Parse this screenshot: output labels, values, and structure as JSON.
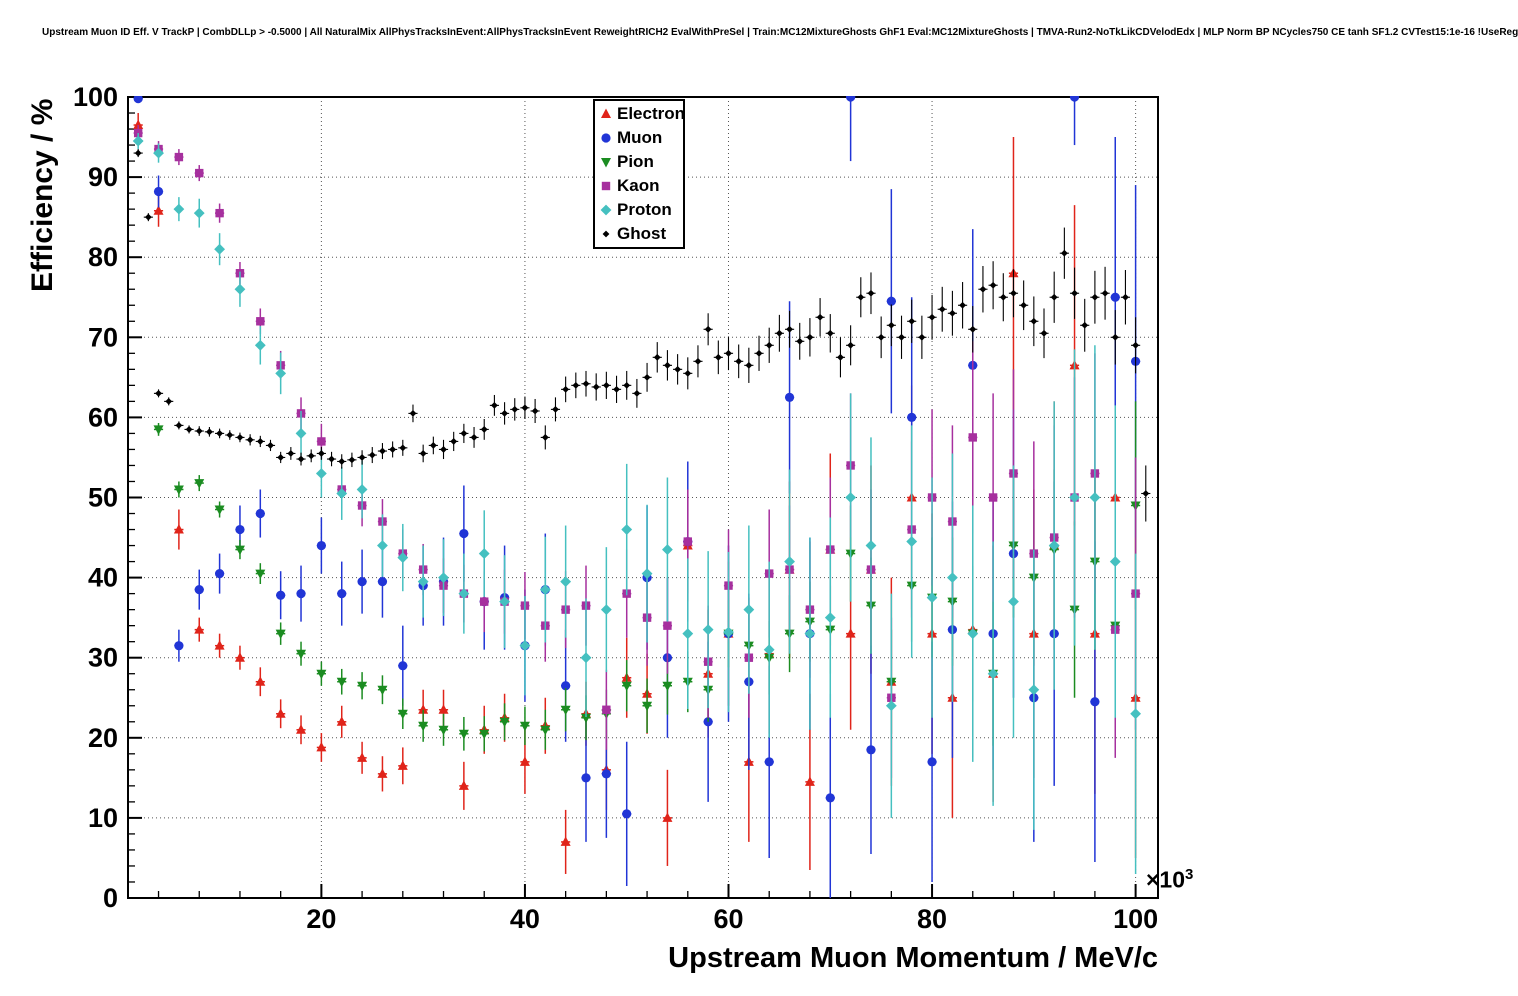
{
  "chart_data": {
    "type": "scatter",
    "title": "Upstream Muon ID Eff. V TrackP | CombDLLp > -0.5000 | All NaturalMix AllPhysTracksInEvent:AllPhysTracksInEvent ReweightRICH2 EvalWithPreSel | Train:MC12MixtureGhosts GhF1 Eval:MC12MixtureGhosts | TMVA-Run2-NoTkLikCDVelodEdx | MLP Norm BP NCycles750 CE tanh SF1.2 CVTest15:1e-16 !UseReg",
    "xlabel": "Upstream Muon Momentum / MeV/c",
    "ylabel": "Efficiency / %",
    "x_scale_base": "×10",
    "x_scale_exp": "3",
    "xlim": [
      1,
      102.2
    ],
    "ylim": [
      0,
      100
    ],
    "xticks": [
      20,
      40,
      60,
      80,
      100
    ],
    "yticks": [
      0,
      10,
      20,
      30,
      40,
      50,
      60,
      70,
      80,
      90,
      100
    ],
    "grid": true,
    "legend_position": "top-center",
    "style": {
      "grid_color": "#555555",
      "frame_color": "#000000",
      "background": "#ffffff"
    },
    "series": [
      {
        "name": "Electron",
        "marker": "triangle-up",
        "color": "#e0241a",
        "xerr": 0.45,
        "x": [
          2,
          4,
          6,
          8,
          10,
          12,
          14,
          16,
          18,
          20,
          22,
          24,
          26,
          28,
          30,
          32,
          34,
          36,
          38,
          40,
          42,
          44,
          46,
          48,
          50,
          52,
          54,
          56,
          58,
          60,
          62,
          64,
          66,
          68,
          70,
          72,
          74,
          76,
          78,
          80,
          82,
          84,
          86,
          88,
          90,
          92,
          94,
          96,
          98,
          100
        ],
        "y": [
          96.5,
          85.8,
          46,
          33.5,
          31.5,
          30,
          27,
          23,
          21,
          18.8,
          22,
          17.5,
          15.5,
          16.5,
          23.5,
          23.5,
          14,
          21,
          22.5,
          17,
          21.5,
          7,
          23,
          16,
          27.5,
          25.5,
          10,
          44,
          28,
          33,
          17,
          30.5,
          41,
          14.5,
          43.5,
          33,
          41,
          27,
          50,
          33,
          25,
          33.5,
          28,
          78,
          33,
          44,
          66.5,
          33,
          50,
          25
        ],
        "ey": [
          1.5,
          2,
          2.5,
          1.5,
          1.5,
          1.5,
          1.8,
          1.8,
          1.8,
          1.8,
          2,
          2,
          2.2,
          2.3,
          2.5,
          2.5,
          3,
          3,
          3,
          4,
          3.5,
          4,
          4,
          5,
          5,
          5,
          6,
          7,
          8,
          9,
          10,
          10,
          11,
          11,
          12,
          12,
          13,
          13,
          14,
          15,
          15,
          16,
          16,
          17,
          18,
          18,
          20,
          20,
          22,
          20
        ]
      },
      {
        "name": "Muon",
        "marker": "circle",
        "color": "#2135d6",
        "xerr": 0.45,
        "x": [
          2,
          4,
          6,
          8,
          10,
          12,
          14,
          16,
          18,
          20,
          22,
          24,
          26,
          28,
          30,
          32,
          34,
          36,
          38,
          40,
          42,
          44,
          46,
          48,
          50,
          52,
          54,
          56,
          58,
          60,
          62,
          64,
          66,
          68,
          70,
          72,
          74,
          76,
          78,
          80,
          82,
          84,
          86,
          88,
          90,
          92,
          94,
          96,
          98,
          100
        ],
        "y": [
          99.8,
          88.2,
          31.5,
          38.5,
          40.5,
          46,
          48,
          37.8,
          38,
          44,
          38,
          39.5,
          39.5,
          29,
          39,
          39.5,
          45.5,
          37,
          37.5,
          31.5,
          38.5,
          26.5,
          15,
          15.5,
          10.5,
          40,
          30,
          44.5,
          22,
          33,
          27,
          17,
          62.5,
          33,
          12.5,
          100,
          18.5,
          74.5,
          60,
          17,
          33.5,
          66.5,
          33,
          43,
          25,
          33,
          100,
          24.5,
          75,
          67
        ],
        "ey": [
          0.4,
          2,
          2,
          2.5,
          2.5,
          3,
          3,
          3,
          3.5,
          3.5,
          4,
          4,
          4.5,
          5,
          5,
          5.5,
          6,
          6,
          6.5,
          7,
          7,
          7,
          8,
          8,
          9,
          9,
          10,
          10,
          10,
          11,
          11,
          12,
          12,
          12,
          13,
          8,
          13,
          14,
          15,
          15,
          16,
          17,
          17,
          18,
          18,
          19,
          6,
          20,
          20,
          22
        ]
      },
      {
        "name": "Pion",
        "marker": "triangle-down",
        "color": "#1b8c21",
        "xerr": 0.45,
        "x": [
          4,
          6,
          8,
          10,
          12,
          14,
          16,
          18,
          20,
          22,
          24,
          26,
          28,
          30,
          32,
          34,
          36,
          38,
          40,
          42,
          44,
          46,
          48,
          50,
          52,
          54,
          56,
          58,
          60,
          62,
          64,
          66,
          68,
          70,
          72,
          74,
          76,
          78,
          80,
          82,
          84,
          86,
          88,
          90,
          92,
          94,
          96,
          98,
          100
        ],
        "y": [
          58.5,
          51,
          51.8,
          48.5,
          43.5,
          40.5,
          33,
          30.5,
          28,
          27,
          26.5,
          26,
          23,
          21.5,
          21,
          20.5,
          20.5,
          22,
          21.5,
          21,
          23.5,
          22.5,
          23,
          26.5,
          24,
          26.5,
          27,
          26,
          33,
          31.5,
          30,
          33,
          34.5,
          33.5,
          43,
          36.5,
          27,
          39,
          37.5,
          37,
          33,
          28,
          44,
          40,
          43.5,
          36,
          42,
          34,
          49
        ],
        "ey": [
          0.8,
          1,
          1,
          1,
          1.2,
          1.3,
          1.4,
          1.5,
          1.5,
          1.6,
          1.7,
          1.8,
          1.9,
          2,
          2,
          2.1,
          2.2,
          2.3,
          2.4,
          2.5,
          2.7,
          2.8,
          3,
          3.2,
          3.4,
          3.6,
          3.8,
          4,
          4.2,
          4.4,
          4.6,
          4.8,
          5,
          5.5,
          6,
          6,
          6.5,
          7,
          7.5,
          8,
          8.5,
          9,
          9,
          10,
          10,
          11,
          11,
          12,
          13
        ]
      },
      {
        "name": "Kaon",
        "marker": "square",
        "color": "#a6309e",
        "xerr": 0.45,
        "x": [
          2,
          4,
          6,
          8,
          10,
          12,
          14,
          16,
          18,
          20,
          22,
          24,
          26,
          28,
          30,
          32,
          34,
          36,
          38,
          40,
          42,
          44,
          46,
          48,
          50,
          52,
          54,
          56,
          58,
          60,
          62,
          64,
          66,
          68,
          70,
          72,
          74,
          76,
          78,
          80,
          82,
          84,
          86,
          88,
          90,
          92,
          94,
          96,
          98,
          100
        ],
        "y": [
          95.5,
          93.5,
          92.5,
          90.5,
          85.5,
          78,
          72,
          66.5,
          60.5,
          57,
          51,
          49,
          47,
          43,
          41,
          39,
          38,
          37,
          37,
          36.5,
          34,
          36,
          36.5,
          23.5,
          38,
          35,
          34,
          44.5,
          29.5,
          39,
          30,
          40.5,
          41,
          36,
          43.5,
          54,
          41,
          25,
          46,
          50,
          47,
          57.5,
          50,
          53,
          43,
          45,
          50,
          53,
          33.5,
          38
        ],
        "ey": [
          1,
          1,
          1,
          1,
          1.2,
          1.4,
          1.6,
          1.8,
          2,
          2.2,
          2.4,
          2.6,
          2.8,
          3,
          3.2,
          3.4,
          3.6,
          3.8,
          4,
          4.2,
          4.5,
          4.8,
          5,
          5,
          5.5,
          6,
          6,
          6.5,
          7,
          7,
          7.5,
          8,
          8,
          8.5,
          9,
          9,
          10,
          10,
          11,
          11,
          12,
          12,
          13,
          13,
          14,
          14,
          15,
          15,
          16,
          17
        ]
      },
      {
        "name": "Proton",
        "marker": "diamond",
        "color": "#45c0c0",
        "xerr": 0.45,
        "x": [
          2,
          4,
          6,
          8,
          10,
          12,
          14,
          16,
          18,
          20,
          22,
          24,
          26,
          28,
          30,
          32,
          34,
          36,
          38,
          40,
          42,
          44,
          46,
          48,
          50,
          52,
          54,
          56,
          58,
          60,
          62,
          64,
          66,
          68,
          70,
          72,
          74,
          76,
          78,
          80,
          82,
          84,
          86,
          88,
          90,
          92,
          94,
          96,
          98,
          100
        ],
        "y": [
          94.5,
          93,
          86,
          85.5,
          81,
          76,
          69,
          65.5,
          58,
          53,
          50.5,
          51,
          44,
          42.5,
          39.5,
          40,
          38,
          43,
          37,
          31.5,
          38.5,
          39.5,
          30,
          36,
          46,
          40.5,
          43.5,
          33,
          33.5,
          33.2,
          36,
          31,
          42,
          33,
          35,
          50,
          44,
          24,
          44.5,
          37.5,
          40,
          33,
          28,
          37,
          26,
          44,
          50,
          50,
          42,
          23
        ],
        "ey": [
          1,
          1.2,
          1.5,
          1.8,
          2,
          2.2,
          2.4,
          2.6,
          2.8,
          3,
          3.3,
          3.6,
          3.9,
          4.2,
          4.5,
          4.8,
          5,
          5.4,
          5.8,
          6.2,
          6.6,
          7,
          7.4,
          7.8,
          8.2,
          8.6,
          9,
          9.4,
          9.8,
          10,
          10.5,
          11,
          11.5,
          12,
          12.5,
          13,
          13.5,
          14,
          14.5,
          15,
          15.5,
          16,
          16.5,
          17,
          17.5,
          18,
          18.5,
          19,
          19.5,
          20
        ]
      },
      {
        "name": "Ghost",
        "marker": "small-diamond",
        "color": "#000000",
        "xerr": 0.45,
        "x": [
          2,
          3,
          4,
          5,
          6,
          7,
          8,
          9,
          10,
          11,
          12,
          13,
          14,
          15,
          16,
          17,
          18,
          19,
          20,
          21,
          22,
          23,
          24,
          25,
          26,
          27,
          28,
          29,
          30,
          31,
          32,
          33,
          34,
          35,
          36,
          37,
          38,
          39,
          40,
          41,
          42,
          43,
          44,
          45,
          46,
          47,
          48,
          49,
          50,
          51,
          52,
          53,
          54,
          55,
          56,
          57,
          58,
          59,
          60,
          61,
          62,
          63,
          64,
          65,
          66,
          67,
          68,
          69,
          70,
          71,
          72,
          73,
          74,
          75,
          76,
          77,
          78,
          79,
          80,
          81,
          82,
          83,
          84,
          85,
          86,
          87,
          88,
          89,
          90,
          91,
          92,
          93,
          94,
          95,
          96,
          97,
          98,
          99,
          100,
          101
        ],
        "y": [
          93,
          85,
          63,
          62,
          59,
          58.5,
          58.3,
          58.2,
          58,
          57.8,
          57.5,
          57.2,
          57,
          56.5,
          55,
          55.5,
          54.8,
          55.2,
          55.5,
          54.8,
          54.5,
          54.7,
          55,
          55.3,
          55.8,
          56,
          56.2,
          60.5,
          55.5,
          56.5,
          56,
          57,
          58,
          57.5,
          58.5,
          61.5,
          60.5,
          61,
          61.2,
          60.8,
          57.5,
          61,
          63.5,
          64,
          64.2,
          63.8,
          64,
          63.5,
          64,
          63,
          65,
          67.5,
          66.5,
          66,
          65.5,
          67,
          71,
          67.5,
          68,
          67,
          66.5,
          68,
          69,
          70.5,
          71,
          69.5,
          70,
          72.5,
          70.5,
          67.5,
          69,
          75,
          75.5,
          70,
          71.5,
          70,
          72,
          70,
          72.5,
          73.5,
          73,
          74,
          71,
          76,
          76.5,
          75,
          75.5,
          74,
          72,
          70.5,
          75,
          80.5,
          75.5,
          71.5,
          75,
          75.5,
          70,
          75,
          69,
          50.5
        ],
        "ey": [
          0.5,
          0.5,
          0.5,
          0.5,
          0.5,
          0.5,
          0.6,
          0.6,
          0.6,
          0.6,
          0.6,
          0.7,
          0.7,
          0.7,
          0.7,
          0.8,
          0.8,
          0.8,
          0.8,
          0.9,
          0.9,
          0.9,
          0.9,
          1.0,
          1.0,
          1.0,
          1.0,
          1.1,
          1.1,
          1.1,
          1.2,
          1.2,
          1.2,
          1.3,
          1.3,
          1.3,
          1.4,
          1.4,
          1.4,
          1.5,
          1.5,
          1.5,
          1.6,
          1.6,
          1.6,
          1.7,
          1.7,
          1.7,
          1.8,
          1.8,
          1.8,
          1.9,
          1.9,
          1.9,
          2.0,
          2.0,
          2.0,
          2.1,
          2.1,
          2.1,
          2.2,
          2.2,
          2.2,
          2.3,
          2.3,
          2.3,
          2.4,
          2.4,
          2.4,
          2.5,
          2.5,
          2.5,
          2.6,
          2.6,
          2.6,
          2.7,
          2.7,
          2.7,
          2.8,
          2.8,
          2.8,
          2.9,
          2.9,
          2.9,
          3.0,
          3.0,
          3.0,
          3.1,
          3.1,
          3.1,
          3.2,
          3.2,
          3.2,
          3.3,
          3.3,
          3.3,
          3.4,
          3.4,
          3.5,
          3.5
        ]
      }
    ]
  }
}
